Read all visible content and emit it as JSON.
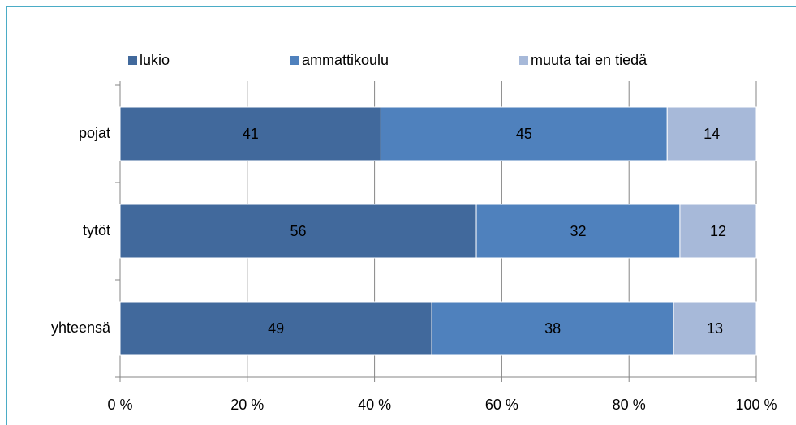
{
  "chart_data": {
    "type": "stacked_barh",
    "categories": [
      "pojat",
      "tytöt",
      "yhteensä"
    ],
    "series": [
      {
        "name": "lukio",
        "color": "#41699c",
        "values": [
          41,
          56,
          49
        ]
      },
      {
        "name": "ammattikoulu",
        "color": "#4f81bd",
        "values": [
          45,
          32,
          38
        ]
      },
      {
        "name": "muuta tai en tiedä",
        "color": "#a7b9d9",
        "values": [
          14,
          12,
          13
        ]
      }
    ],
    "xlim": [
      0,
      100
    ],
    "xticks": [
      {
        "value": 0,
        "label": "0 %"
      },
      {
        "value": 20,
        "label": "20 %"
      },
      {
        "value": 40,
        "label": "40 %"
      },
      {
        "value": 60,
        "label": "60 %"
      },
      {
        "value": 80,
        "label": "80 %"
      },
      {
        "value": 100,
        "label": "100 %"
      }
    ],
    "grid": true
  }
}
